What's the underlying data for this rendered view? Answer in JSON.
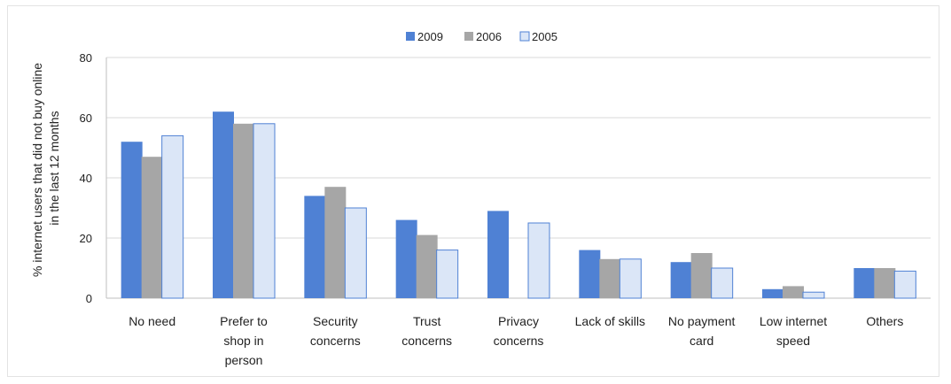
{
  "chart_data": {
    "type": "bar",
    "title": "",
    "xlabel": "",
    "ylabel": [
      "% internet users that did not buy online",
      "in the last 12 months"
    ],
    "ylim": [
      0,
      80
    ],
    "yticks": [
      0,
      20,
      40,
      60,
      80
    ],
    "grid": true,
    "legend_position": "top-center",
    "categories": [
      [
        "No need"
      ],
      [
        "Prefer to",
        "shop in",
        "person"
      ],
      [
        "Security",
        "concerns"
      ],
      [
        "Trust",
        "concerns"
      ],
      [
        "Privacy",
        "concerns"
      ],
      [
        "Lack of skills"
      ],
      [
        "No payment",
        "card"
      ],
      [
        "Low internet",
        "speed"
      ],
      [
        "Others"
      ]
    ],
    "series": [
      {
        "name": "2009",
        "color": "#4f81d4",
        "values": [
          52,
          62,
          34,
          26,
          29,
          16,
          12,
          3,
          10
        ]
      },
      {
        "name": "2006",
        "color": "#a6a6a6",
        "values": [
          47,
          58,
          37,
          21,
          null,
          13,
          15,
          4,
          10
        ]
      },
      {
        "name": "2005",
        "color": "#dbe6f7",
        "stroke": "#4f81d4",
        "values": [
          54,
          58,
          30,
          16,
          25,
          13,
          10,
          2,
          9
        ]
      }
    ]
  }
}
